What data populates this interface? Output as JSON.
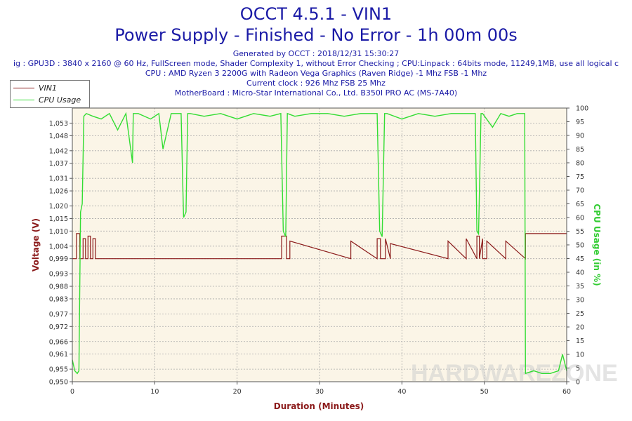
{
  "header": {
    "title": "OCCT 4.5.1 - VIN1",
    "subtitle": "Power Supply - Finished - No Error - 1h 00m 00s",
    "generated": "Generated by OCCT : 2018/12/31 15:30:27",
    "config": "ig : GPU3D : 3840 x 2160 @ 60 Hz, FullScreen mode, Shader Complexity 1, without Error Checking ; CPU:Linpack : 64bits mode, 11249,1MB, use all logical c",
    "cpu": "CPU : AMD Ryzen 3 2200G with Radeon Vega Graphics (Raven Ridge) -1 Mhz FSB -1 Mhz",
    "clock": "Current clock : 926 Mhz FSB 25 Mhz",
    "motherboard": "MotherBoard : Micro-Star International Co., Ltd. B350I PRO AC (MS-7A40)"
  },
  "watermark": "HARDWAREZONE",
  "chart_data": {
    "type": "line",
    "xlabel": "Duration (Minutes)",
    "ylabel": "Voltage (V)",
    "y2label": "CPU Usage (in %)",
    "xlim": [
      0,
      60
    ],
    "ylim": [
      0.95,
      1.059
    ],
    "y2lim": [
      0,
      100
    ],
    "xticks": [
      0,
      10,
      20,
      30,
      40,
      50,
      60
    ],
    "yticks": [
      "0.950",
      "0.955",
      "0.961",
      "0.966",
      "0.972",
      "0.977",
      "0.983",
      "0.988",
      "0.993",
      "0.999",
      "1.004",
      "1.010",
      "1.015",
      "1.020",
      "1.026",
      "1.031",
      "1.037",
      "1.042",
      "1.048",
      "1.053"
    ],
    "y2ticks": [
      0,
      5,
      10,
      15,
      20,
      25,
      30,
      35,
      40,
      45,
      50,
      55,
      60,
      65,
      70,
      75,
      80,
      85,
      90,
      95,
      100
    ],
    "grid": true,
    "legend_position": "top-left",
    "colors": {
      "vin1": "#8b1a1a",
      "cpu": "#33dd33",
      "plot_bg": "#fbf5e7",
      "grid": "#aaaaaa",
      "title": "#1a1aa6"
    },
    "series": [
      {
        "name": "VIN1",
        "axis": "left",
        "x": [
          0,
          0.5,
          0.5,
          0.9,
          0.9,
          1.3,
          1.3,
          1.6,
          1.6,
          1.9,
          1.9,
          2.2,
          2.2,
          2.5,
          2.5,
          2.8,
          2.8,
          25.4,
          25.4,
          26.0,
          26.0,
          26.4,
          26.4,
          33.8,
          33.8,
          37.0,
          37.0,
          37.4,
          37.4,
          38.0,
          38.0,
          38.6,
          38.6,
          45.6,
          45.6,
          47.8,
          47.8,
          49.1,
          49.1,
          49.4,
          49.4,
          49.8,
          49.8,
          50.3,
          50.3,
          52.6,
          52.6,
          55.0,
          55.0,
          60
        ],
        "y": [
          0.999,
          0.999,
          1.009,
          1.009,
          0.999,
          0.999,
          1.007,
          1.007,
          0.999,
          0.999,
          1.008,
          1.008,
          0.999,
          0.999,
          1.007,
          1.007,
          0.999,
          0.999,
          1.008,
          1.008,
          0.999,
          0.999,
          1.006,
          0.999,
          1.006,
          0.999,
          1.007,
          1.007,
          0.999,
          0.999,
          1.007,
          0.999,
          1.005,
          0.999,
          1.006,
          0.999,
          1.007,
          0.999,
          1.008,
          1.008,
          0.999,
          1.007,
          0.999,
          0.999,
          1.006,
          0.999,
          1.006,
          0.999,
          1.009,
          1.009
        ]
      },
      {
        "name": "CPU Usage",
        "axis": "right",
        "x": [
          0,
          0.3,
          0.6,
          0.8,
          1.0,
          1.2,
          1.4,
          1.7,
          2.5,
          3.5,
          4.5,
          5.5,
          6.5,
          7.3,
          7.4,
          8.0,
          9.5,
          10.5,
          11.0,
          12.0,
          13.2,
          13.5,
          13.8,
          14.0,
          14.3,
          16.0,
          18.0,
          20.0,
          22.0,
          24.0,
          25.3,
          25.6,
          25.9,
          26.1,
          27.0,
          29.0,
          31.0,
          33.0,
          35.0,
          37.0,
          37.3,
          37.6,
          37.9,
          38.2,
          40.0,
          42.0,
          44.0,
          46.0,
          48.0,
          48.9,
          49.1,
          49.3,
          49.6,
          49.8,
          51.0,
          52.0,
          53.0,
          54.0,
          54.9,
          55.0,
          56.0,
          57.0,
          58.0,
          59.0,
          59.5,
          60.0
        ],
        "y": [
          8,
          4,
          3,
          4,
          62,
          65,
          97,
          98,
          97,
          96,
          98,
          92,
          98,
          80,
          98,
          98,
          96,
          98,
          85,
          98,
          98,
          60,
          62,
          98,
          98,
          97,
          98,
          96,
          98,
          97,
          98,
          55,
          53,
          98,
          97,
          98,
          98,
          97,
          98,
          98,
          55,
          53,
          98,
          98,
          96,
          98,
          97,
          98,
          98,
          98,
          55,
          54,
          98,
          98,
          93,
          98,
          97,
          98,
          98,
          3,
          4,
          3,
          3,
          4,
          10,
          4
        ]
      }
    ]
  }
}
